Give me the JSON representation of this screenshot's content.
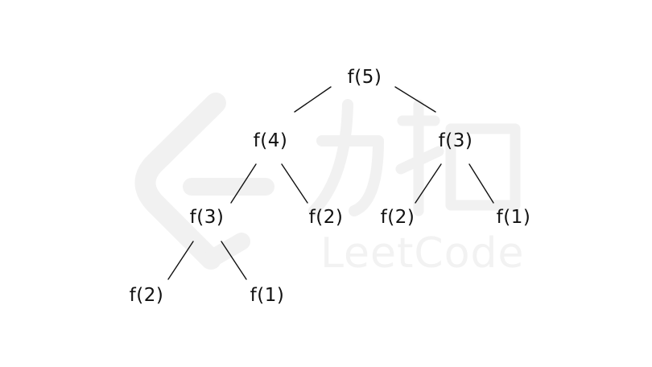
{
  "watermark": {
    "logo": "力扣",
    "text": "LeetCode"
  },
  "tree": {
    "root": "f(5)",
    "left": "f(4)",
    "right": "f(3)",
    "left_left": "f(3)",
    "left_right": "f(2)",
    "right_left": "f(2)",
    "right_right": "f(1)",
    "left_left_left": "f(2)",
    "left_left_right": "f(1)"
  }
}
